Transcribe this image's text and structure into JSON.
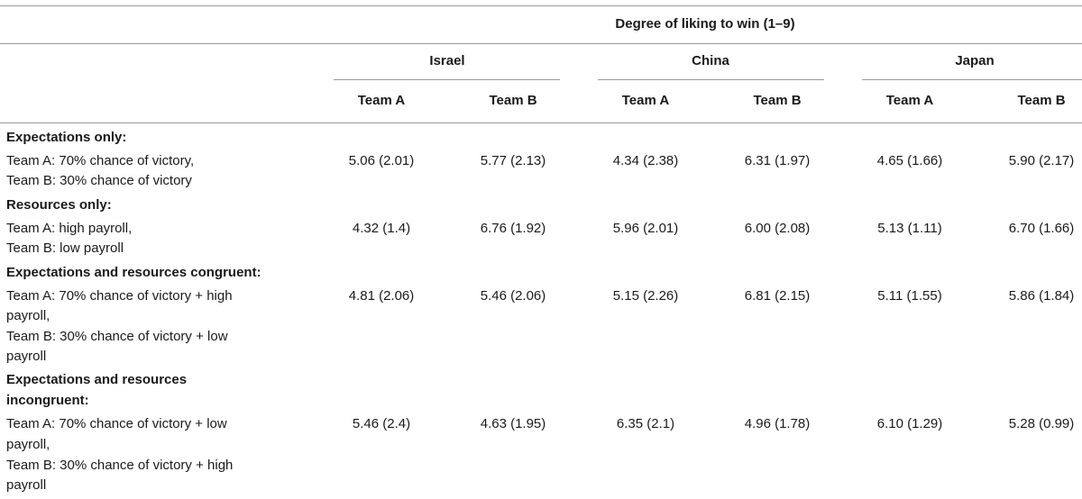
{
  "table": {
    "spanner": "Degree of liking to win (1–9)",
    "countries": [
      "Israel",
      "China",
      "Japan"
    ],
    "team_headers": [
      "Team A",
      "Team B",
      "Team A",
      "Team B",
      "Team A",
      "Team B"
    ],
    "sections": [
      {
        "heading": "Expectations only:",
        "desc": [
          "Team A: 70% chance of victory,",
          "Team B: 30% chance of victory"
        ],
        "values": [
          "5.06 (2.01)",
          "5.77 (2.13)",
          "4.34 (2.38)",
          "6.31 (1.97)",
          "4.65 (1.66)",
          "5.90 (2.17)"
        ]
      },
      {
        "heading": "Resources only:",
        "desc": [
          "Team A: high payroll,",
          "Team B: low payroll"
        ],
        "values": [
          "4.32 (1.4)",
          "6.76 (1.92)",
          "5.96 (2.01)",
          "6.00 (2.08)",
          "5.13 (1.11)",
          "6.70 (1.66)"
        ]
      },
      {
        "heading": "Expectations and resources congruent:",
        "desc": [
          "Team A: 70% chance of victory + high",
          "payroll,",
          "Team B: 30% chance of victory + low",
          "payroll"
        ],
        "values": [
          "4.81 (2.06)",
          "5.46 (2.06)",
          "5.15 (2.26)",
          "6.81 (2.15)",
          "5.11 (1.55)",
          "5.86 (1.84)"
        ]
      },
      {
        "heading_lines": [
          "Expectations and resources",
          "incongruent:"
        ],
        "desc": [
          "Team A: 70% chance of victory + low",
          "payroll,",
          "Team B: 30% chance of victory + high",
          "payroll"
        ],
        "values": [
          "5.46 (2.4)",
          "4.63 (1.95)",
          "6.35 (2.1)",
          "4.96 (1.78)",
          "6.10 (1.29)",
          "5.28 (0.99)"
        ]
      }
    ]
  }
}
